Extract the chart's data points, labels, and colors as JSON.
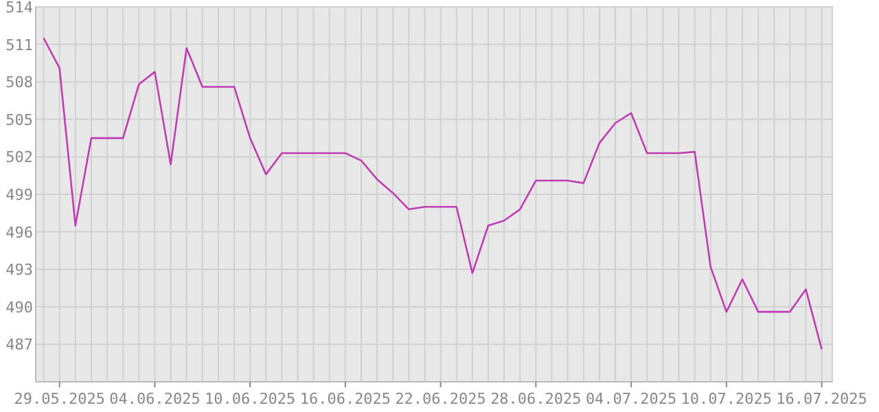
{
  "chart_data": {
    "type": "line",
    "x": [
      "2025-05-28",
      "2025-05-29",
      "2025-05-30",
      "2025-05-31",
      "2025-06-01",
      "2025-06-02",
      "2025-06-03",
      "2025-06-04",
      "2025-06-05",
      "2025-06-06",
      "2025-06-07",
      "2025-06-08",
      "2025-06-09",
      "2025-06-10",
      "2025-06-11",
      "2025-06-12",
      "2025-06-13",
      "2025-06-14",
      "2025-06-15",
      "2025-06-16",
      "2025-06-17",
      "2025-06-18",
      "2025-06-19",
      "2025-06-20",
      "2025-06-21",
      "2025-06-22",
      "2025-06-23",
      "2025-06-24",
      "2025-06-25",
      "2025-06-26",
      "2025-06-27",
      "2025-06-28",
      "2025-06-29",
      "2025-06-30",
      "2025-07-01",
      "2025-07-02",
      "2025-07-03",
      "2025-07-04",
      "2025-07-05",
      "2025-07-06",
      "2025-07-07",
      "2025-07-08",
      "2025-07-09",
      "2025-07-10",
      "2025-07-11",
      "2025-07-12",
      "2025-07-13",
      "2025-07-14",
      "2025-07-15",
      "2025-07-16"
    ],
    "series": [
      {
        "color": "#c03cb4",
        "values": [
          511.5,
          509.1,
          496.5,
          503.5,
          503.5,
          503.5,
          507.8,
          508.8,
          501.4,
          510.7,
          507.6,
          507.6,
          507.6,
          503.5,
          500.6,
          502.3,
          502.3,
          502.3,
          502.3,
          502.3,
          501.7,
          500.2,
          499.1,
          497.8,
          498.0,
          498.0,
          498.0,
          492.7,
          496.5,
          496.9,
          497.8,
          500.1,
          500.1,
          500.1,
          499.9,
          503.1,
          504.7,
          505.5,
          502.3,
          502.3,
          502.3,
          502.4,
          493.2,
          489.6,
          492.2,
          489.6,
          489.6,
          489.6,
          491.4,
          486.6
        ]
      }
    ],
    "xlim": [
      "2025-05-27T12:00",
      "2025-07-16T16:00"
    ],
    "xticks": [
      {
        "value": "2025-05-28",
        "label": null
      },
      {
        "value": "2025-05-29",
        "label": "29.05.2025"
      },
      {
        "value": "2025-05-30",
        "label": null
      },
      {
        "value": "2025-05-31",
        "label": null
      },
      {
        "value": "2025-06-01",
        "label": null
      },
      {
        "value": "2025-06-02",
        "label": null
      },
      {
        "value": "2025-06-03",
        "label": null
      },
      {
        "value": "2025-06-04",
        "label": "04.06.2025"
      },
      {
        "value": "2025-06-05",
        "label": null
      },
      {
        "value": "2025-06-06",
        "label": null
      },
      {
        "value": "2025-06-07",
        "label": null
      },
      {
        "value": "2025-06-08",
        "label": null
      },
      {
        "value": "2025-06-09",
        "label": null
      },
      {
        "value": "2025-06-10",
        "label": "10.06.2025"
      },
      {
        "value": "2025-06-11",
        "label": null
      },
      {
        "value": "2025-06-12",
        "label": null
      },
      {
        "value": "2025-06-13",
        "label": null
      },
      {
        "value": "2025-06-14",
        "label": null
      },
      {
        "value": "2025-06-15",
        "label": null
      },
      {
        "value": "2025-06-16",
        "label": "16.06.2025"
      },
      {
        "value": "2025-06-17",
        "label": null
      },
      {
        "value": "2025-06-18",
        "label": null
      },
      {
        "value": "2025-06-19",
        "label": null
      },
      {
        "value": "2025-06-20",
        "label": null
      },
      {
        "value": "2025-06-21",
        "label": null
      },
      {
        "value": "2025-06-22",
        "label": "22.06.2025"
      },
      {
        "value": "2025-06-23",
        "label": null
      },
      {
        "value": "2025-06-24",
        "label": null
      },
      {
        "value": "2025-06-25",
        "label": null
      },
      {
        "value": "2025-06-26",
        "label": null
      },
      {
        "value": "2025-06-27",
        "label": null
      },
      {
        "value": "2025-06-28",
        "label": "28.06.2025"
      },
      {
        "value": "2025-06-29",
        "label": null
      },
      {
        "value": "2025-06-30",
        "label": null
      },
      {
        "value": "2025-07-01",
        "label": null
      },
      {
        "value": "2025-07-02",
        "label": null
      },
      {
        "value": "2025-07-03",
        "label": null
      },
      {
        "value": "2025-07-04",
        "label": "04.07.2025"
      },
      {
        "value": "2025-07-05",
        "label": null
      },
      {
        "value": "2025-07-06",
        "label": null
      },
      {
        "value": "2025-07-07",
        "label": null
      },
      {
        "value": "2025-07-08",
        "label": null
      },
      {
        "value": "2025-07-09",
        "label": null
      },
      {
        "value": "2025-07-10",
        "label": "10.07.2025"
      },
      {
        "value": "2025-07-11",
        "label": null
      },
      {
        "value": "2025-07-12",
        "label": null
      },
      {
        "value": "2025-07-13",
        "label": null
      },
      {
        "value": "2025-07-14",
        "label": null
      },
      {
        "value": "2025-07-15",
        "label": null
      },
      {
        "value": "2025-07-16",
        "label": "16.07.2025"
      }
    ],
    "ylim": [
      484,
      514
    ],
    "yticks": [
      487,
      490,
      493,
      496,
      499,
      502,
      505,
      508,
      511,
      514
    ],
    "grid": true,
    "marker": "none",
    "line_style": "solid"
  }
}
